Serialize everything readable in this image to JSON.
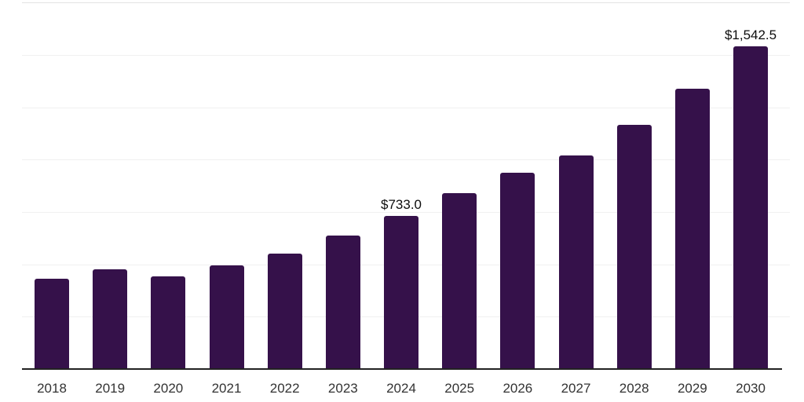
{
  "chart_data": {
    "type": "bar",
    "title": "",
    "xlabel": "",
    "ylabel": "",
    "categories": [
      "2018",
      "2019",
      "2020",
      "2021",
      "2022",
      "2023",
      "2024",
      "2025",
      "2026",
      "2027",
      "2028",
      "2029",
      "2030"
    ],
    "values": [
      433,
      475,
      444,
      495,
      550,
      638,
      733,
      840,
      936,
      1020,
      1165,
      1340,
      1542.5
    ],
    "data_labels": {
      "2024": "$733.0",
      "2030": "$1,542.5"
    },
    "ylim": [
      0,
      1762.5
    ],
    "gridline_values": [
      250,
      500,
      750,
      1000,
      1250,
      1500,
      1750
    ],
    "grid": "horizontal",
    "legend": "none",
    "bar_color": "#35114a",
    "axis_line_color": "#222222",
    "gridline_color": "#f0f0f0",
    "gridline_top_color": "#e3e3e3",
    "tick_label_color": "#333333",
    "data_label_color": "#0d0d0d",
    "background_color": "#ffffff"
  }
}
